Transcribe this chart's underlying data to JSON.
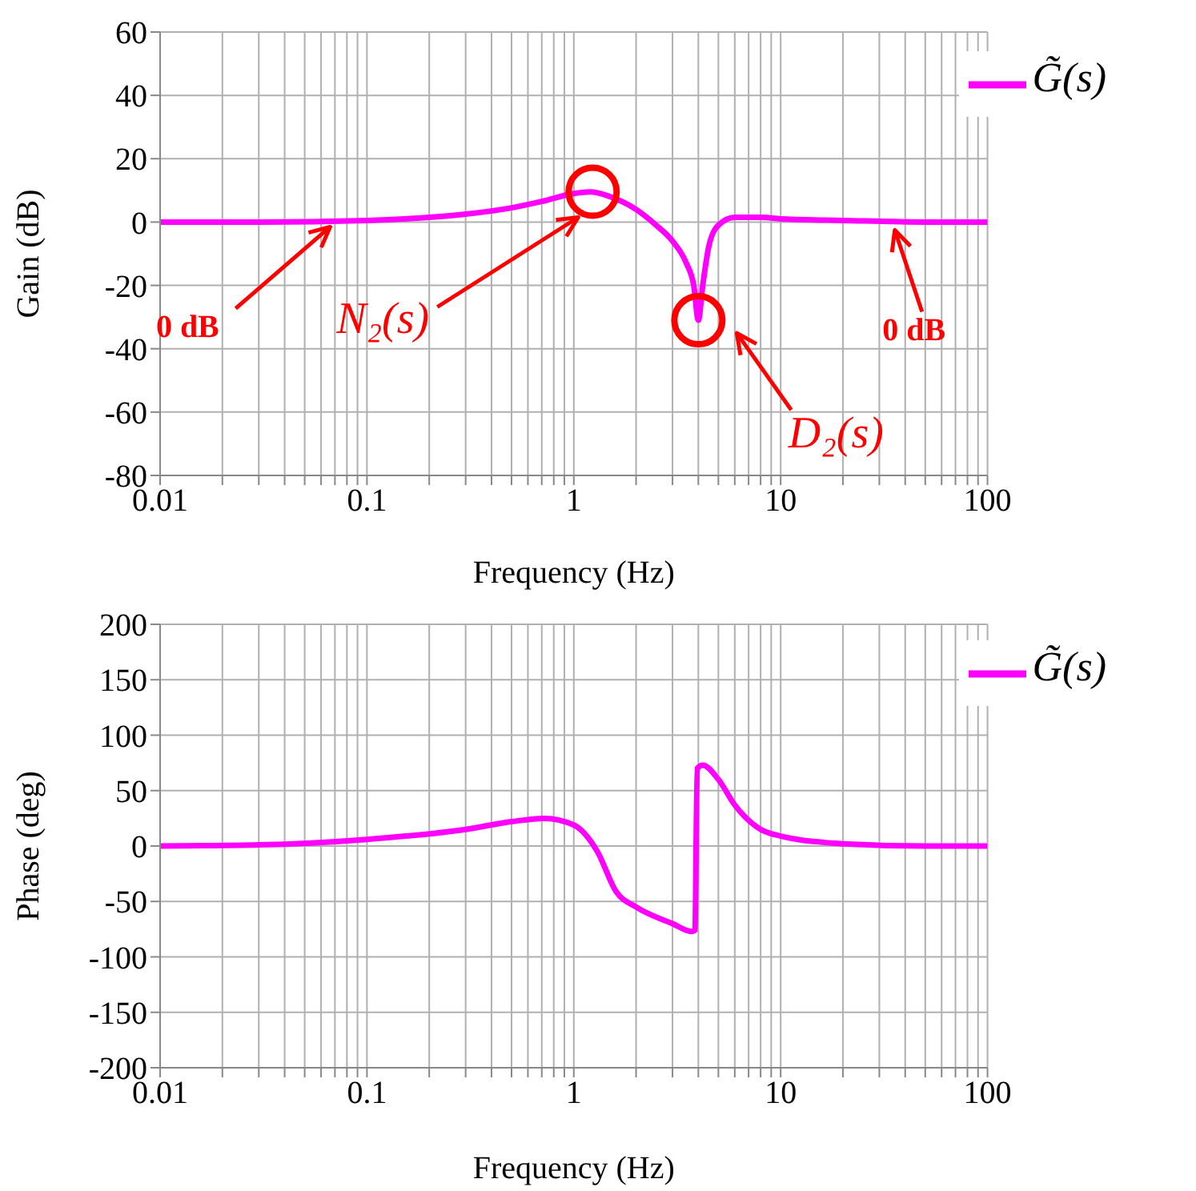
{
  "chart_data": [
    {
      "type": "line",
      "xlabel": "Frequency (Hz)",
      "ylabel": "Gain (dB)",
      "xlim": [
        0.01,
        100
      ],
      "ylim": [
        -80,
        60
      ],
      "log": "x",
      "grid": true,
      "legend": "top right",
      "marker": "none",
      "line_style": "solid",
      "xticks": [
        0.01,
        {
          "value": 0.02,
          "label": null
        },
        {
          "value": 0.03,
          "label": null
        },
        {
          "value": 0.04,
          "label": null
        },
        {
          "value": 0.05,
          "label": null
        },
        {
          "value": 0.06,
          "label": null
        },
        {
          "value": 0.07,
          "label": null
        },
        {
          "value": 0.08,
          "label": null
        },
        {
          "value": 0.09,
          "label": null
        },
        0.1,
        {
          "value": 0.2,
          "label": null
        },
        {
          "value": 0.3,
          "label": null
        },
        {
          "value": 0.4,
          "label": null
        },
        {
          "value": 0.5,
          "label": null
        },
        {
          "value": 0.6,
          "label": null
        },
        {
          "value": 0.7,
          "label": null
        },
        {
          "value": 0.8,
          "label": null
        },
        {
          "value": 0.9,
          "label": null
        },
        1,
        {
          "value": 2,
          "label": null
        },
        {
          "value": 3,
          "label": null
        },
        {
          "value": 4,
          "label": null
        },
        {
          "value": 5,
          "label": null
        },
        {
          "value": 6,
          "label": null
        },
        {
          "value": 7,
          "label": null
        },
        {
          "value": 8,
          "label": null
        },
        {
          "value": 9,
          "label": null
        },
        10,
        {
          "value": 20,
          "label": null
        },
        {
          "value": 30,
          "label": null
        },
        {
          "value": 40,
          "label": null
        },
        {
          "value": 50,
          "label": null
        },
        {
          "value": 60,
          "label": null
        },
        {
          "value": 70,
          "label": null
        },
        {
          "value": 80,
          "label": null
        },
        {
          "value": 90,
          "label": null
        },
        100
      ],
      "yticks": [
        -80,
        -60,
        -40,
        -20,
        0,
        20,
        40,
        60
      ],
      "series": [
        {
          "name": "G̃(s)",
          "color": "#ff00ff",
          "x": [
            0.01,
            0.03,
            0.1,
            0.2,
            0.3,
            0.5,
            0.7,
            1,
            1.2,
            1.5,
            2,
            2.5,
            3,
            3.5,
            3.8,
            4,
            4.2,
            4.5,
            5,
            6,
            8,
            10,
            20,
            50,
            100
          ],
          "values": [
            0,
            0,
            0.5,
            1.5,
            2.5,
            4.5,
            6.5,
            9,
            9.5,
            8,
            4,
            -1,
            -6,
            -13,
            -20,
            -31,
            -20,
            -7.5,
            -1,
            1.5,
            1.5,
            1,
            0.5,
            0,
            0
          ]
        }
      ],
      "annotations": [
        {
          "text": "0 dB",
          "x": 0.07,
          "y": 0
        },
        {
          "text": "N₂(s)",
          "x": 1.05,
          "y": 1.5
        },
        {
          "text": "D₂(s)",
          "x": 4,
          "y": -31
        },
        {
          "text": "0 dB",
          "x": 35,
          "y": 0
        }
      ]
    },
    {
      "type": "line",
      "xlabel": "Frequency (Hz)",
      "ylabel": "Phase (deg)",
      "xlim": [
        0.01,
        100
      ],
      "ylim": [
        -200,
        200
      ],
      "log": "x",
      "grid": true,
      "legend": "top right",
      "marker": "none",
      "line_style": "solid",
      "xticks": [
        0.01,
        {
          "value": 0.02,
          "label": null
        },
        {
          "value": 0.03,
          "label": null
        },
        {
          "value": 0.04,
          "label": null
        },
        {
          "value": 0.05,
          "label": null
        },
        {
          "value": 0.06,
          "label": null
        },
        {
          "value": 0.07,
          "label": null
        },
        {
          "value": 0.08,
          "label": null
        },
        {
          "value": 0.09,
          "label": null
        },
        0.1,
        {
          "value": 0.2,
          "label": null
        },
        {
          "value": 0.3,
          "label": null
        },
        {
          "value": 0.4,
          "label": null
        },
        {
          "value": 0.5,
          "label": null
        },
        {
          "value": 0.6,
          "label": null
        },
        {
          "value": 0.7,
          "label": null
        },
        {
          "value": 0.8,
          "label": null
        },
        {
          "value": 0.9,
          "label": null
        },
        1,
        {
          "value": 2,
          "label": null
        },
        {
          "value": 3,
          "label": null
        },
        {
          "value": 4,
          "label": null
        },
        {
          "value": 5,
          "label": null
        },
        {
          "value": 6,
          "label": null
        },
        {
          "value": 7,
          "label": null
        },
        {
          "value": 8,
          "label": null
        },
        {
          "value": 9,
          "label": null
        },
        10,
        {
          "value": 20,
          "label": null
        },
        {
          "value": 30,
          "label": null
        },
        {
          "value": 40,
          "label": null
        },
        {
          "value": 50,
          "label": null
        },
        {
          "value": 60,
          "label": null
        },
        {
          "value": 70,
          "label": null
        },
        {
          "value": 80,
          "label": null
        },
        {
          "value": 90,
          "label": null
        },
        100
      ],
      "yticks": [
        -200,
        -150,
        -100,
        -50,
        0,
        50,
        100,
        150,
        200
      ],
      "series": [
        {
          "name": "G̃(s)",
          "color": "#ff00ff",
          "x": [
            0.01,
            0.03,
            0.1,
            0.3,
            0.5,
            0.72,
            1,
            1.3,
            1.6,
            2,
            3,
            3.7,
            3.85,
            3.95,
            4.2,
            5,
            6,
            8,
            10,
            20,
            50,
            100
          ],
          "values": [
            0,
            1,
            6,
            15,
            22,
            25,
            19,
            -5,
            -41,
            -55,
            -70,
            -77,
            -76,
            70,
            73,
            60,
            37,
            15,
            9,
            2,
            0,
            0
          ]
        }
      ]
    }
  ]
}
